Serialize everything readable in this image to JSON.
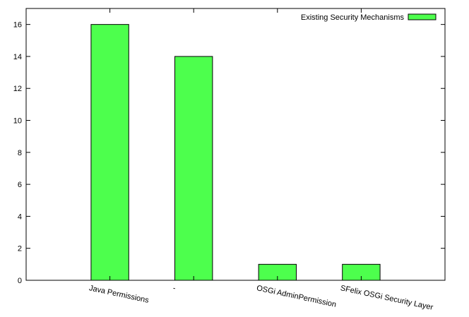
{
  "chart_data": {
    "type": "bar",
    "categories": [
      "Java Permissions",
      "-",
      "OSGi AdminPermission",
      "SFelix OSGi Security Layer"
    ],
    "series": [
      {
        "name": "Existing Security Mechanisms",
        "values": [
          16,
          14,
          1,
          1
        ],
        "color": "#4dff4d"
      }
    ],
    "ylim": [
      0,
      17
    ],
    "yticks": [
      0,
      2,
      4,
      6,
      8,
      10,
      12,
      14,
      16
    ],
    "xlabel": "",
    "ylabel": "",
    "grid": false,
    "legend_position": "top-right"
  }
}
